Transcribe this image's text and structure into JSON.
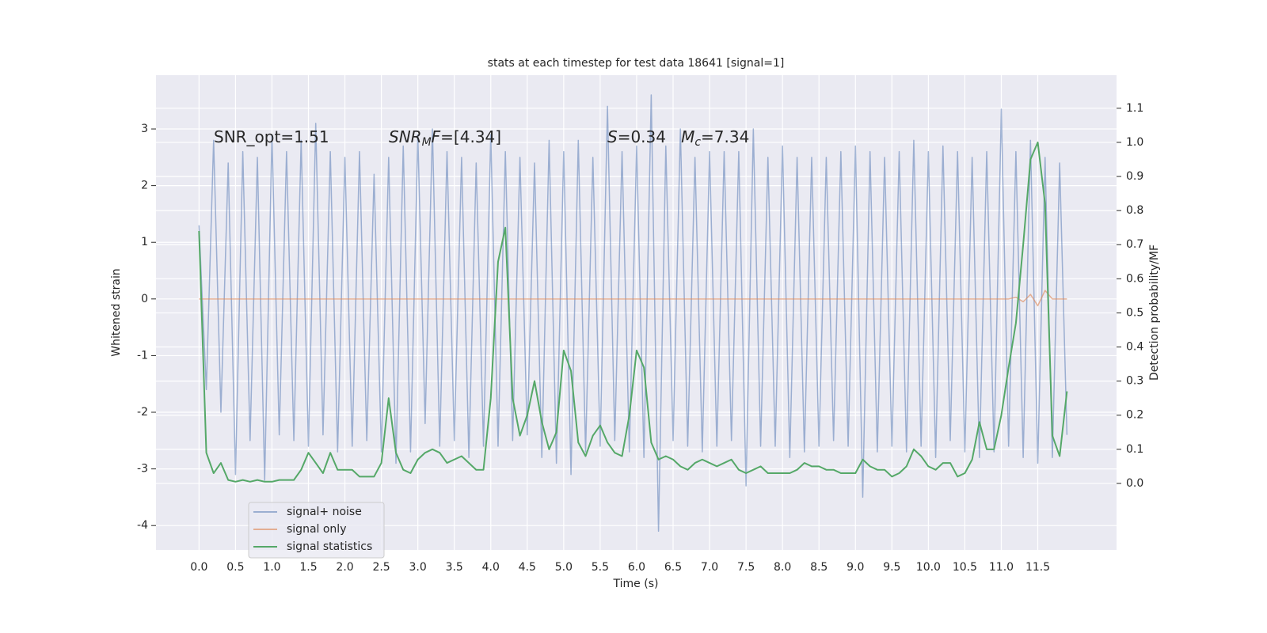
{
  "chart_data": {
    "type": "line",
    "title": "stats at each timestep for test data 18641 [signal=1]",
    "x_label": "Time (s)",
    "y_label": "Whitened strain",
    "y2_label": "Detection probability/MF",
    "annotations": [
      [
        {
          "t": "SNR_opt=1.51"
        }
      ],
      [
        {
          "t": "SNR",
          "italic": true
        },
        {
          "t": "M",
          "italic": true,
          "sub": true
        },
        {
          "t": "F",
          "italic": true
        },
        {
          "t": "=[4.34]"
        }
      ],
      [
        {
          "t": "S",
          "italic": true
        },
        {
          "t": "=0.34   "
        },
        {
          "t": "M",
          "italic": true
        },
        {
          "t": "c",
          "italic": true,
          "sub": true
        },
        {
          "t": "=7.34"
        }
      ]
    ],
    "x": [
      0.0,
      0.1,
      0.2,
      0.3,
      0.4,
      0.5,
      0.6,
      0.7,
      0.8,
      0.9,
      1.0,
      1.1,
      1.2,
      1.3,
      1.4,
      1.5,
      1.6,
      1.7,
      1.8,
      1.9,
      2.0,
      2.1,
      2.2,
      2.3,
      2.4,
      2.5,
      2.6,
      2.7,
      2.8,
      2.9,
      3.0,
      3.1,
      3.2,
      3.3,
      3.4,
      3.5,
      3.6,
      3.7,
      3.8,
      3.9,
      4.0,
      4.1,
      4.2,
      4.3,
      4.4,
      4.5,
      4.6,
      4.7,
      4.8,
      4.9,
      5.0,
      5.1,
      5.2,
      5.3,
      5.4,
      5.5,
      5.6,
      5.7,
      5.8,
      5.9,
      6.0,
      6.1,
      6.2,
      6.3,
      6.4,
      6.5,
      6.6,
      6.7,
      6.8,
      6.9,
      7.0,
      7.1,
      7.2,
      7.3,
      7.4,
      7.5,
      7.6,
      7.7,
      7.8,
      7.9,
      8.0,
      8.1,
      8.2,
      8.3,
      8.4,
      8.5,
      8.6,
      8.7,
      8.8,
      8.9,
      9.0,
      9.1,
      9.2,
      9.3,
      9.4,
      9.5,
      9.6,
      9.7,
      9.8,
      9.9,
      10.0,
      10.1,
      10.2,
      10.3,
      10.4,
      10.5,
      10.6,
      10.7,
      10.8,
      10.9,
      11.0,
      11.1,
      11.2,
      11.3,
      11.4,
      11.5,
      11.6,
      11.7,
      11.8,
      11.9
    ],
    "series": [
      {
        "name": "signal+ noise",
        "color": "#4c72b0",
        "alpha": 0.5,
        "values": [
          1.3,
          -1.6,
          2.8,
          -2.0,
          2.4,
          -3.1,
          2.6,
          -2.5,
          2.5,
          -3.2,
          2.9,
          -2.4,
          2.6,
          -2.5,
          2.8,
          -2.6,
          3.1,
          -2.4,
          2.6,
          -2.7,
          2.5,
          -2.6,
          2.6,
          -2.5,
          2.2,
          -2.7,
          2.5,
          -2.9,
          2.7,
          -2.7,
          2.9,
          -2.2,
          3.0,
          -2.6,
          2.6,
          -2.5,
          2.5,
          -2.8,
          2.4,
          -2.6,
          2.9,
          -2.6,
          2.6,
          -2.5,
          2.5,
          -2.4,
          2.4,
          -2.8,
          2.8,
          -2.9,
          2.6,
          -3.1,
          2.8,
          -2.7,
          2.5,
          -2.6,
          3.4,
          -2.5,
          2.6,
          -2.7,
          2.7,
          -2.8,
          3.6,
          -4.1,
          2.7,
          -2.5,
          3.0,
          -2.6,
          2.5,
          -2.7,
          2.6,
          -2.6,
          2.6,
          -2.5,
          2.6,
          -3.3,
          3.0,
          -2.6,
          2.5,
          -2.6,
          2.7,
          -2.8,
          2.5,
          -2.7,
          2.5,
          -2.6,
          2.5,
          -2.5,
          2.6,
          -2.6,
          2.7,
          -3.5,
          2.6,
          -2.7,
          2.5,
          -2.6,
          2.6,
          -2.7,
          2.8,
          -2.6,
          2.6,
          -2.8,
          2.7,
          -2.5,
          2.6,
          -2.7,
          2.5,
          -2.8,
          2.6,
          -2.7,
          3.35,
          -2.6,
          2.6,
          -2.8,
          2.8,
          -2.9,
          2.5,
          -2.8,
          2.4,
          -2.4
        ]
      },
      {
        "name": "signal only",
        "color": "#dd8452",
        "alpha": 0.6,
        "values": [
          0,
          0,
          0,
          0,
          0,
          0,
          0,
          0,
          0,
          0,
          0,
          0,
          0,
          0,
          0,
          0,
          0,
          0,
          0,
          0,
          0,
          0,
          0,
          0,
          0,
          0,
          0,
          0,
          0,
          0,
          0,
          0,
          0,
          0,
          0,
          0,
          0,
          0,
          0,
          0,
          0,
          0,
          0,
          0,
          0,
          0,
          0,
          0,
          0,
          0,
          0,
          0,
          0,
          0,
          0,
          0,
          0,
          0,
          0,
          0,
          0,
          0,
          0,
          0,
          0,
          0,
          0,
          0,
          0,
          0,
          0,
          0,
          0,
          0,
          0,
          0,
          0,
          0,
          0,
          0,
          0,
          0,
          0,
          0,
          0,
          0,
          0,
          0,
          0,
          0,
          0,
          0,
          0,
          0,
          0,
          0,
          0,
          0,
          0,
          0,
          0,
          0,
          0,
          0,
          0,
          0,
          0,
          0,
          0,
          0,
          0,
          0,
          0.03,
          -0.05,
          0.08,
          -0.12,
          0.15,
          0,
          0,
          0
        ]
      },
      {
        "name": "signal statistics",
        "color": "#55a868",
        "alpha": 1,
        "axis": "y2",
        "values": [
          0.74,
          0.09,
          0.03,
          0.06,
          0.01,
          0.005,
          0.01,
          0.005,
          0.01,
          0.005,
          0.005,
          0.01,
          0.01,
          0.01,
          0.04,
          0.09,
          0.06,
          0.03,
          0.09,
          0.04,
          0.04,
          0.04,
          0.02,
          0.02,
          0.02,
          0.06,
          0.25,
          0.09,
          0.04,
          0.03,
          0.07,
          0.09,
          0.1,
          0.09,
          0.06,
          0.07,
          0.08,
          0.06,
          0.04,
          0.04,
          0.25,
          0.65,
          0.75,
          0.25,
          0.14,
          0.2,
          0.3,
          0.18,
          0.1,
          0.15,
          0.39,
          0.33,
          0.12,
          0.08,
          0.14,
          0.17,
          0.12,
          0.09,
          0.08,
          0.2,
          0.39,
          0.34,
          0.12,
          0.07,
          0.08,
          0.07,
          0.05,
          0.04,
          0.06,
          0.07,
          0.06,
          0.05,
          0.06,
          0.07,
          0.04,
          0.03,
          0.04,
          0.05,
          0.03,
          0.03,
          0.03,
          0.03,
          0.04,
          0.06,
          0.05,
          0.05,
          0.04,
          0.04,
          0.03,
          0.03,
          0.03,
          0.07,
          0.05,
          0.04,
          0.04,
          0.02,
          0.03,
          0.05,
          0.1,
          0.08,
          0.05,
          0.04,
          0.06,
          0.06,
          0.02,
          0.03,
          0.07,
          0.18,
          0.1,
          0.1,
          0.2,
          0.34,
          0.47,
          0.7,
          0.95,
          1.0,
          0.82,
          0.14,
          0.08,
          0.27
        ]
      }
    ],
    "xlim": [
      -0.59,
      12.58
    ],
    "xticks": [
      {
        "value": 0,
        "label": "0.0"
      },
      0.5,
      {
        "value": 1,
        "label": "1.0"
      },
      1.5,
      {
        "value": 2,
        "label": "2.0"
      },
      2.5,
      {
        "value": 3,
        "label": "3.0"
      },
      3.5,
      {
        "value": 4,
        "label": "4.0"
      },
      4.5,
      {
        "value": 5,
        "label": "5.0"
      },
      5.5,
      {
        "value": 6,
        "label": "6.0"
      },
      6.5,
      {
        "value": 7,
        "label": "7.0"
      },
      7.5,
      {
        "value": 8,
        "label": "8.0"
      },
      8.5,
      {
        "value": 9,
        "label": "9.0"
      },
      9.5,
      {
        "value": 10,
        "label": "10.0"
      },
      10.5,
      {
        "value": 11,
        "label": "11.0"
      },
      11.5
    ],
    "ylim": [
      -4.43,
      3.95
    ],
    "yticks": [
      -4,
      -3,
      -2,
      -1,
      0,
      1,
      2,
      3
    ],
    "y2lim": [
      -0.195,
      1.197
    ],
    "y2ticks": [
      {
        "value": 0,
        "label": "0.0"
      },
      0.1,
      0.2,
      0.3,
      0.4,
      0.5,
      0.6,
      0.7,
      0.8,
      0.9,
      {
        "value": 1,
        "label": "1.0"
      },
      1.1
    ],
    "grid": true,
    "legend": "lower left"
  }
}
